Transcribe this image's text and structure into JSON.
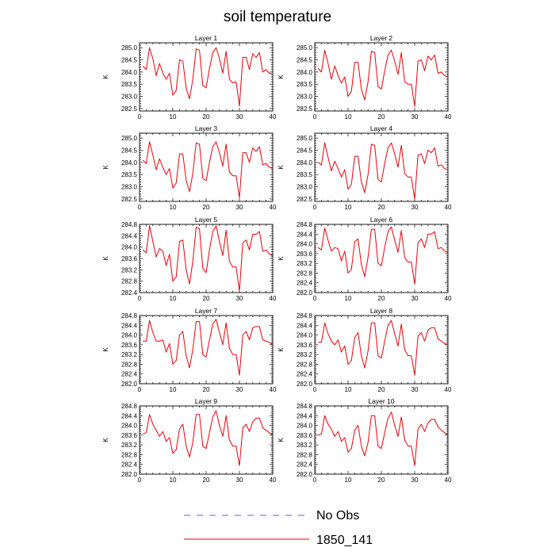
{
  "figure": {
    "title": "soil temperature",
    "legend": [
      {
        "label": "No Obs",
        "color": "#5a6aa8",
        "dash": true
      },
      {
        "label": "1850_141",
        "color": "#e8000b",
        "dash": false
      }
    ]
  },
  "chart_data": [
    {
      "type": "line",
      "title": "Layer 1",
      "ylabel": "K",
      "xlim": [
        0,
        40
      ],
      "ylim": [
        282.4,
        285.2
      ],
      "xticks": [
        0,
        10,
        20,
        30,
        40
      ],
      "yticks": [
        282.5,
        283.0,
        283.5,
        284.0,
        284.5,
        285.0
      ],
      "ytick_labels": [
        "282.5",
        "283.0",
        "283.5",
        "284.0",
        "284.5",
        "285.0"
      ],
      "x": [
        1,
        2,
        3,
        4,
        5,
        6,
        7,
        8,
        9,
        10,
        11,
        12,
        13,
        14,
        15,
        16,
        17,
        18,
        19,
        20,
        21,
        22,
        23,
        24,
        25,
        26,
        27,
        28,
        29,
        30,
        31,
        32,
        33,
        34,
        35,
        36,
        37,
        38,
        39,
        40
      ],
      "series": [
        {
          "name": "1850_141",
          "values": [
            284.25,
            284.1,
            285.0,
            284.55,
            283.85,
            284.35,
            283.95,
            283.7,
            283.95,
            283.05,
            283.25,
            284.5,
            284.45,
            283.35,
            282.9,
            283.7,
            284.95,
            284.9,
            283.45,
            283.35,
            284.15,
            284.8,
            285.0,
            284.55,
            283.95,
            284.85,
            283.7,
            283.55,
            283.6,
            282.6,
            284.6,
            284.6,
            284.1,
            284.75,
            284.6,
            284.8,
            284.0,
            284.1,
            283.95,
            283.9
          ]
        }
      ]
    },
    {
      "type": "line",
      "title": "Layer 2",
      "ylabel": "K",
      "xlim": [
        0,
        40
      ],
      "ylim": [
        282.4,
        285.2
      ],
      "xticks": [
        0,
        10,
        20,
        30,
        40
      ],
      "yticks": [
        282.5,
        283.0,
        283.5,
        284.0,
        284.5,
        285.0
      ],
      "ytick_labels": [
        "282.5",
        "283.0",
        "283.5",
        "284.0",
        "284.5",
        "285.0"
      ],
      "x": [
        1,
        2,
        3,
        4,
        5,
        6,
        7,
        8,
        9,
        10,
        11,
        12,
        13,
        14,
        15,
        16,
        17,
        18,
        19,
        20,
        21,
        22,
        23,
        24,
        25,
        26,
        27,
        28,
        29,
        30,
        31,
        32,
        33,
        34,
        35,
        36,
        37,
        38,
        39,
        40
      ],
      "series": [
        {
          "name": "1850_141",
          "values": [
            284.15,
            284.0,
            284.9,
            284.35,
            283.7,
            284.25,
            283.85,
            283.55,
            283.8,
            283.0,
            283.2,
            284.4,
            284.4,
            283.3,
            282.85,
            283.6,
            284.85,
            284.8,
            283.4,
            283.3,
            284.05,
            284.7,
            284.9,
            284.45,
            283.9,
            284.8,
            283.6,
            283.5,
            283.5,
            282.6,
            284.45,
            284.5,
            284.05,
            284.65,
            284.5,
            284.7,
            283.95,
            284.0,
            283.85,
            283.8
          ]
        }
      ]
    },
    {
      "type": "line",
      "title": "Layer 3",
      "ylabel": "K",
      "xlim": [
        0,
        40
      ],
      "ylim": [
        282.4,
        285.2
      ],
      "xticks": [
        0,
        10,
        20,
        30,
        40
      ],
      "yticks": [
        282.5,
        283.0,
        283.5,
        284.0,
        284.5,
        285.0
      ],
      "ytick_labels": [
        "282.5",
        "283.0",
        "283.5",
        "284.0",
        "284.5",
        "285.0"
      ],
      "x": [
        1,
        2,
        3,
        4,
        5,
        6,
        7,
        8,
        9,
        10,
        11,
        12,
        13,
        14,
        15,
        16,
        17,
        18,
        19,
        20,
        21,
        22,
        23,
        24,
        25,
        26,
        27,
        28,
        29,
        30,
        31,
        32,
        33,
        34,
        35,
        36,
        37,
        38,
        39,
        40
      ],
      "series": [
        {
          "name": "1850_141",
          "values": [
            284.1,
            283.95,
            284.85,
            284.3,
            283.7,
            284.15,
            283.8,
            283.5,
            283.75,
            282.95,
            283.15,
            284.35,
            284.35,
            283.25,
            282.8,
            283.55,
            284.8,
            284.75,
            283.35,
            283.25,
            284.0,
            284.65,
            284.85,
            284.4,
            283.85,
            284.75,
            283.6,
            283.45,
            283.45,
            282.55,
            284.4,
            284.4,
            284.0,
            284.6,
            284.45,
            284.65,
            283.9,
            283.95,
            283.8,
            283.75
          ]
        }
      ]
    },
    {
      "type": "line",
      "title": "Layer 4",
      "ylabel": "K",
      "xlim": [
        0,
        40
      ],
      "ylim": [
        282.4,
        285.2
      ],
      "xticks": [
        0,
        10,
        20,
        30,
        40
      ],
      "yticks": [
        282.5,
        283.0,
        283.5,
        284.0,
        284.5,
        285.0
      ],
      "ytick_labels": [
        "282.5",
        "283.0",
        "283.5",
        "284.0",
        "284.5",
        "285.0"
      ],
      "x": [
        1,
        2,
        3,
        4,
        5,
        6,
        7,
        8,
        9,
        10,
        11,
        12,
        13,
        14,
        15,
        16,
        17,
        18,
        19,
        20,
        21,
        22,
        23,
        24,
        25,
        26,
        27,
        28,
        29,
        30,
        31,
        32,
        33,
        34,
        35,
        36,
        37,
        38,
        39,
        40
      ],
      "series": [
        {
          "name": "1850_141",
          "values": [
            284.0,
            283.9,
            284.8,
            284.2,
            283.65,
            284.05,
            283.75,
            283.4,
            283.7,
            282.9,
            283.1,
            284.25,
            284.25,
            283.2,
            282.75,
            283.5,
            284.75,
            284.7,
            283.3,
            283.2,
            283.95,
            284.6,
            284.8,
            284.35,
            283.8,
            284.7,
            283.55,
            283.4,
            283.4,
            282.5,
            284.3,
            284.35,
            283.95,
            284.5,
            284.4,
            284.6,
            283.85,
            283.9,
            283.75,
            283.7
          ]
        }
      ]
    },
    {
      "type": "line",
      "title": "Layer 5",
      "ylabel": "K",
      "xlim": [
        0,
        40
      ],
      "ylim": [
        282.4,
        284.8
      ],
      "xticks": [
        0,
        10,
        20,
        30,
        40
      ],
      "yticks": [
        282.4,
        282.8,
        283.2,
        283.6,
        284.0,
        284.4,
        284.8
      ],
      "ytick_labels": [
        "282.4",
        "282.8",
        "283.2",
        "283.6",
        "284.0",
        "284.4",
        "284.8"
      ],
      "x": [
        1,
        2,
        3,
        4,
        5,
        6,
        7,
        8,
        9,
        10,
        11,
        12,
        13,
        14,
        15,
        16,
        17,
        18,
        19,
        20,
        21,
        22,
        23,
        24,
        25,
        26,
        27,
        28,
        29,
        30,
        31,
        32,
        33,
        34,
        35,
        36,
        37,
        38,
        39,
        40
      ],
      "series": [
        {
          "name": "1850_141",
          "values": [
            283.9,
            283.8,
            284.75,
            284.2,
            283.65,
            283.95,
            283.85,
            283.35,
            283.75,
            282.8,
            282.95,
            284.2,
            284.25,
            283.2,
            282.7,
            283.5,
            284.7,
            284.65,
            283.25,
            283.1,
            283.9,
            284.55,
            284.75,
            284.2,
            283.7,
            284.6,
            283.5,
            283.3,
            283.3,
            282.45,
            284.15,
            284.25,
            283.9,
            284.45,
            284.45,
            284.55,
            283.85,
            283.9,
            283.75,
            283.7
          ]
        }
      ]
    },
    {
      "type": "line",
      "title": "Layer 6",
      "ylabel": "K",
      "xlim": [
        0,
        40
      ],
      "ylim": [
        282.0,
        284.8
      ],
      "xticks": [
        0,
        10,
        20,
        30,
        40
      ],
      "yticks": [
        282.0,
        282.4,
        282.8,
        283.2,
        283.6,
        284.0,
        284.4,
        284.8
      ],
      "ytick_labels": [
        "282.0",
        "282.4",
        "282.8",
        "283.2",
        "283.6",
        "284.0",
        "284.4",
        "284.8"
      ],
      "x": [
        1,
        2,
        3,
        4,
        5,
        6,
        7,
        8,
        9,
        10,
        11,
        12,
        13,
        14,
        15,
        16,
        17,
        18,
        19,
        20,
        21,
        22,
        23,
        24,
        25,
        26,
        27,
        28,
        29,
        30,
        31,
        32,
        33,
        34,
        35,
        36,
        37,
        38,
        39,
        40
      ],
      "series": [
        {
          "name": "1850_141",
          "values": [
            283.85,
            283.75,
            284.65,
            284.15,
            283.7,
            283.85,
            283.8,
            283.3,
            283.7,
            282.8,
            282.95,
            284.1,
            284.2,
            283.15,
            282.65,
            283.45,
            284.6,
            284.6,
            283.2,
            283.1,
            283.85,
            284.5,
            284.7,
            284.15,
            283.65,
            284.55,
            283.45,
            283.25,
            283.25,
            282.35,
            284.05,
            284.2,
            283.85,
            284.4,
            284.4,
            284.5,
            283.8,
            283.85,
            283.7,
            283.65
          ]
        }
      ]
    },
    {
      "type": "line",
      "title": "Layer 7",
      "ylabel": "K",
      "xlim": [
        0,
        40
      ],
      "ylim": [
        282.0,
        284.8
      ],
      "xticks": [
        0,
        10,
        20,
        30,
        40
      ],
      "yticks": [
        282.0,
        282.4,
        282.8,
        283.2,
        283.6,
        284.0,
        284.4,
        284.8
      ],
      "ytick_labels": [
        "282.0",
        "282.4",
        "282.8",
        "283.2",
        "283.6",
        "284.0",
        "284.4",
        "284.8"
      ],
      "x": [
        1,
        2,
        3,
        4,
        5,
        6,
        7,
        8,
        9,
        10,
        11,
        12,
        13,
        14,
        15,
        16,
        17,
        18,
        19,
        20,
        21,
        22,
        23,
        24,
        25,
        26,
        27,
        28,
        29,
        30,
        31,
        32,
        33,
        34,
        35,
        36,
        37,
        38,
        39,
        40
      ],
      "series": [
        {
          "name": "1850_141",
          "values": [
            283.75,
            283.75,
            284.6,
            284.1,
            283.75,
            283.75,
            283.8,
            283.3,
            283.65,
            282.8,
            282.95,
            284.0,
            284.15,
            283.15,
            282.65,
            283.4,
            284.55,
            284.55,
            283.2,
            283.1,
            283.8,
            284.45,
            284.65,
            284.1,
            283.6,
            284.5,
            283.45,
            283.2,
            283.2,
            282.35,
            284.0,
            284.15,
            283.8,
            284.3,
            284.35,
            284.35,
            283.8,
            283.75,
            283.7,
            283.6
          ]
        }
      ]
    },
    {
      "type": "line",
      "title": "Layer 8",
      "ylabel": "K",
      "xlim": [
        0,
        40
      ],
      "ylim": [
        282.0,
        284.8
      ],
      "xticks": [
        0,
        10,
        20,
        30,
        40
      ],
      "yticks": [
        282.0,
        282.4,
        282.8,
        283.2,
        283.6,
        284.0,
        284.4,
        284.8
      ],
      "ytick_labels": [
        "282.0",
        "282.4",
        "282.8",
        "283.2",
        "283.6",
        "284.0",
        "284.4",
        "284.8"
      ],
      "x": [
        1,
        2,
        3,
        4,
        5,
        6,
        7,
        8,
        9,
        10,
        11,
        12,
        13,
        14,
        15,
        16,
        17,
        18,
        19,
        20,
        21,
        22,
        23,
        24,
        25,
        26,
        27,
        28,
        29,
        30,
        31,
        32,
        33,
        34,
        35,
        36,
        37,
        38,
        39,
        40
      ],
      "series": [
        {
          "name": "1850_141",
          "values": [
            283.7,
            283.7,
            284.5,
            284.05,
            283.75,
            283.6,
            283.8,
            283.3,
            283.55,
            282.8,
            282.95,
            283.9,
            284.1,
            283.15,
            282.65,
            283.35,
            284.5,
            284.5,
            283.15,
            283.05,
            283.75,
            284.4,
            284.6,
            284.05,
            283.55,
            284.45,
            283.4,
            283.15,
            283.15,
            282.35,
            283.95,
            284.1,
            283.75,
            284.2,
            284.3,
            284.3,
            283.85,
            283.75,
            283.65,
            283.6
          ]
        }
      ]
    },
    {
      "type": "line",
      "title": "Layer 9",
      "ylabel": "K",
      "xlim": [
        0,
        40
      ],
      "ylim": [
        282.0,
        284.8
      ],
      "xticks": [
        0,
        10,
        20,
        30,
        40
      ],
      "yticks": [
        282.0,
        282.4,
        282.8,
        283.2,
        283.6,
        284.0,
        284.4,
        284.8
      ],
      "ytick_labels": [
        "282.0",
        "282.4",
        "282.8",
        "283.2",
        "283.6",
        "284.0",
        "284.4",
        "284.8"
      ],
      "x": [
        1,
        2,
        3,
        4,
        5,
        6,
        7,
        8,
        9,
        10,
        11,
        12,
        13,
        14,
        15,
        16,
        17,
        18,
        19,
        20,
        21,
        22,
        23,
        24,
        25,
        26,
        27,
        28,
        29,
        30,
        31,
        32,
        33,
        34,
        35,
        36,
        37,
        38,
        39,
        40
      ],
      "series": [
        {
          "name": "1850_141",
          "values": [
            283.65,
            283.7,
            284.45,
            284.05,
            283.8,
            283.55,
            283.75,
            283.35,
            283.5,
            282.85,
            283.0,
            283.85,
            284.05,
            283.15,
            282.7,
            283.3,
            284.45,
            284.45,
            283.15,
            283.05,
            283.7,
            284.35,
            284.6,
            284.0,
            283.55,
            284.4,
            283.4,
            283.15,
            283.15,
            282.35,
            283.9,
            284.05,
            283.75,
            284.15,
            284.3,
            284.3,
            283.9,
            283.8,
            283.7,
            283.6
          ]
        }
      ]
    },
    {
      "type": "line",
      "title": "Layer 10",
      "ylabel": "K",
      "xlim": [
        0,
        40
      ],
      "ylim": [
        282.0,
        284.8
      ],
      "xticks": [
        0,
        10,
        20,
        30,
        40
      ],
      "yticks": [
        282.0,
        282.4,
        282.8,
        283.2,
        283.6,
        284.0,
        284.4,
        284.8
      ],
      "ytick_labels": [
        "282.0",
        "282.4",
        "282.8",
        "283.2",
        "283.6",
        "284.0",
        "284.4",
        "284.8"
      ],
      "x": [
        1,
        2,
        3,
        4,
        5,
        6,
        7,
        8,
        9,
        10,
        11,
        12,
        13,
        14,
        15,
        16,
        17,
        18,
        19,
        20,
        21,
        22,
        23,
        24,
        25,
        26,
        27,
        28,
        29,
        30,
        31,
        32,
        33,
        34,
        35,
        36,
        37,
        38,
        39,
        40
      ],
      "series": [
        {
          "name": "1850_141",
          "values": [
            283.6,
            283.65,
            284.4,
            284.05,
            283.85,
            283.55,
            283.75,
            283.35,
            283.5,
            282.9,
            283.05,
            283.8,
            284.0,
            283.15,
            282.75,
            283.3,
            284.4,
            284.4,
            283.15,
            283.05,
            283.7,
            284.3,
            284.55,
            284.0,
            283.55,
            284.35,
            283.4,
            283.15,
            283.15,
            282.35,
            283.85,
            284.05,
            283.75,
            284.1,
            284.25,
            284.25,
            283.95,
            283.8,
            283.7,
            283.6
          ]
        }
      ]
    }
  ]
}
